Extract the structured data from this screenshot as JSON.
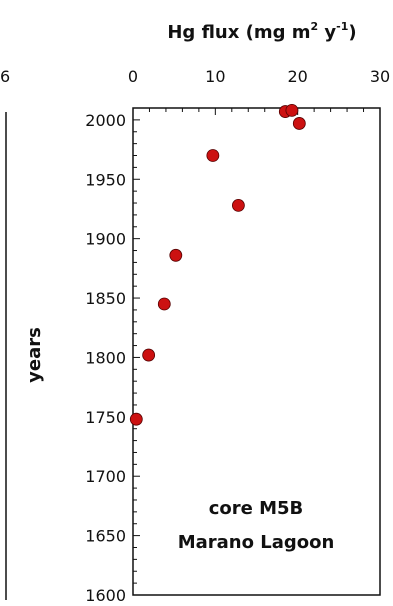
{
  "chart_data": {
    "type": "scatter",
    "title": {
      "prefix": "Hg flux (mg m",
      "sup1": "2",
      "mid": " y",
      "sup2": "-1",
      "suffix": ")"
    },
    "xlabel": "Hg flux (mg m2 y-1)",
    "ylabel": "years",
    "xlim": [
      0,
      30
    ],
    "ylim": [
      1600,
      2010
    ],
    "x_ticks": [
      0,
      10,
      20,
      30
    ],
    "y_ticks": [
      1600,
      1650,
      1700,
      1750,
      1800,
      1850,
      1900,
      1950,
      2000
    ],
    "x_tick_labels": [
      "0",
      "10",
      "20",
      "30"
    ],
    "y_tick_labels": [
      "1600",
      "1650",
      "1700",
      "1750",
      "1800",
      "1850",
      "1900",
      "1950",
      "2000"
    ],
    "annotation": [
      "core M5B",
      "Marano Lagoon"
    ],
    "clipped_left_label": "6",
    "marker_color": "#cc1111",
    "points": [
      {
        "x": 18.5,
        "y": 2007
      },
      {
        "x": 19.3,
        "y": 2008
      },
      {
        "x": 20.2,
        "y": 1997
      },
      {
        "x": 9.7,
        "y": 1970
      },
      {
        "x": 12.8,
        "y": 1928
      },
      {
        "x": 5.2,
        "y": 1886
      },
      {
        "x": 3.8,
        "y": 1845
      },
      {
        "x": 1.9,
        "y": 1802
      },
      {
        "x": 0.4,
        "y": 1748
      }
    ]
  }
}
